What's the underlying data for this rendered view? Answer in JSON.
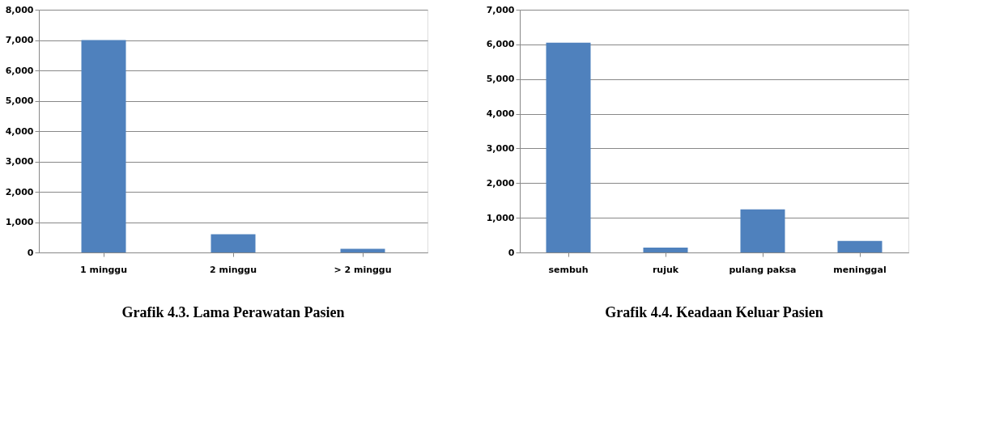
{
  "chart_data": [
    {
      "type": "bar",
      "title": "Grafik 4.3. Lama Perawatan Pasien",
      "categories": [
        "1 minggu",
        "2 minggu",
        "> 2 minggu"
      ],
      "values": [
        7000,
        600,
        120
      ],
      "color": "#4f81bd",
      "ylim": [
        0,
        8000
      ],
      "yticks": [
        0,
        {
          "value": 1000,
          "label": "1,000"
        },
        {
          "value": 2000,
          "label": "2,000"
        },
        {
          "value": 3000,
          "label": "3,000"
        },
        {
          "value": 4000,
          "label": "4,000"
        },
        {
          "value": 5000,
          "label": "5,000"
        },
        {
          "value": 6000,
          "label": "6,000"
        },
        {
          "value": 7000,
          "label": "7,000"
        },
        {
          "value": 8000,
          "label": "8,000"
        }
      ],
      "grid": "y"
    },
    {
      "type": "bar",
      "title": "Grafik 4.4. Keadaan Keluar Pasien",
      "categories": [
        "sembuh",
        "rujuk",
        "pulang paksa",
        "meninggal"
      ],
      "values": [
        6050,
        140,
        1240,
        330
      ],
      "color": "#4f81bd",
      "ylim": [
        0,
        7000
      ],
      "yticks": [
        0,
        {
          "value": 1000,
          "label": "1,000"
        },
        {
          "value": 2000,
          "label": "2,000"
        },
        {
          "value": 3000,
          "label": "3,000"
        },
        {
          "value": 4000,
          "label": "4,000"
        },
        {
          "value": 5000,
          "label": "5,000"
        },
        {
          "value": 6000,
          "label": "6,000"
        },
        {
          "value": 7000,
          "label": "7,000"
        }
      ],
      "grid": "y"
    }
  ]
}
